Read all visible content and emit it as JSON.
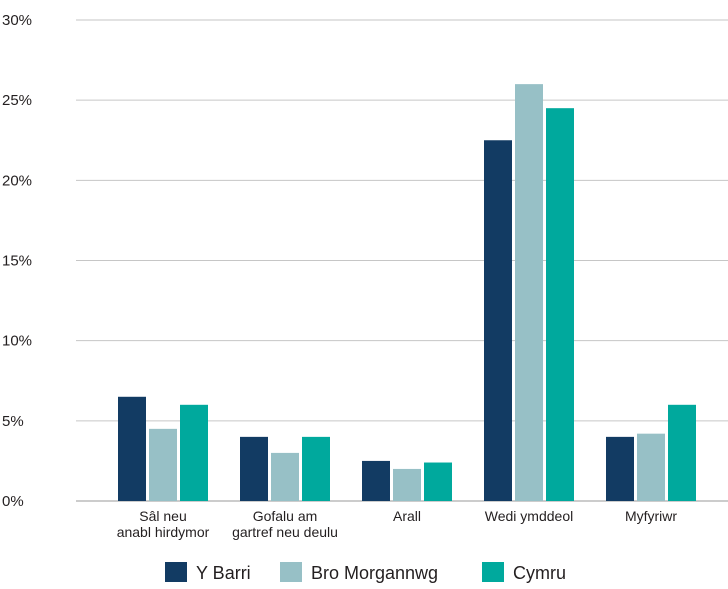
{
  "chart_data": {
    "type": "bar",
    "categories": [
      [
        "Sâl neu",
        "anabl hirdymor"
      ],
      [
        "Gofalu am",
        "gartref neu deulu"
      ],
      [
        "Arall"
      ],
      [
        "Wedi ymddeol"
      ],
      [
        "Myfyriwr"
      ]
    ],
    "series": [
      {
        "name": "Y Barri",
        "color": "#123b63",
        "values": [
          6.5,
          4.0,
          2.5,
          22.5,
          4.0
        ]
      },
      {
        "name": "Bro Morgannwg",
        "color": "#97c0c6",
        "values": [
          4.5,
          3.0,
          2.0,
          26.0,
          4.2
        ]
      },
      {
        "name": "Cymru",
        "color": "#00a99d",
        "values": [
          6.0,
          4.0,
          2.4,
          24.5,
          6.0
        ]
      }
    ],
    "yticks": [
      "0%",
      "5%",
      "10%",
      "15%",
      "20%",
      "25%",
      "30%"
    ],
    "ylim": [
      0,
      30
    ],
    "grid": true,
    "legend": "bottom-center",
    "title": "",
    "xlabel": "",
    "ylabel": ""
  }
}
